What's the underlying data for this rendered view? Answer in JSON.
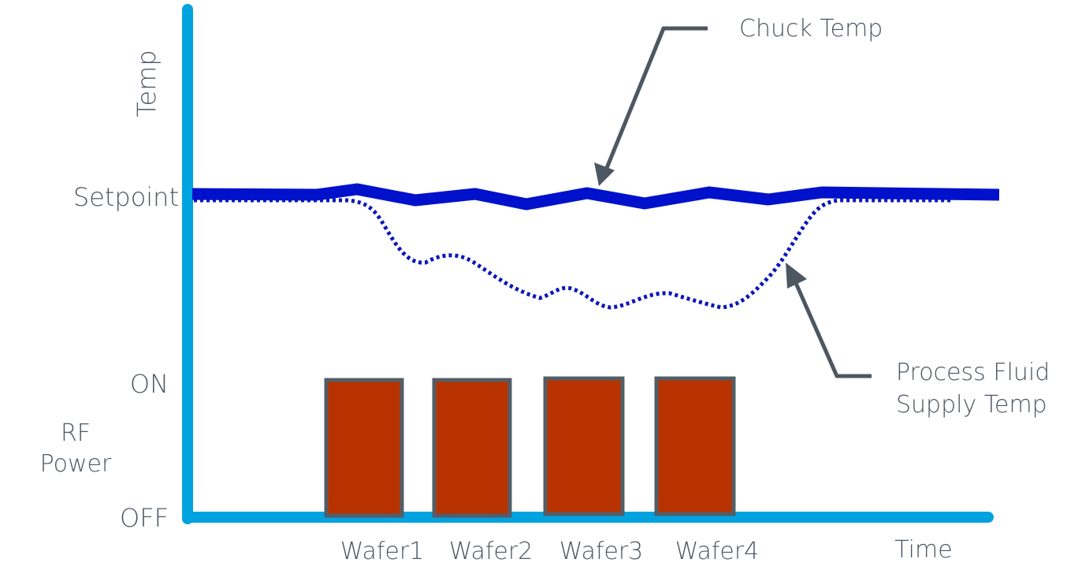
{
  "axis": {
    "y_title": "Temp",
    "x_title": "Time",
    "setpoint_label": "Setpoint",
    "on_label": "ON",
    "off_label": "OFF",
    "rf_label_line1": "RF",
    "rf_label_line2": "Power"
  },
  "callouts": {
    "chuck_temp": "Chuck Temp",
    "process_fluid_line1": "Process Fluid",
    "process_fluid_line2": "Supply Temp"
  },
  "wafers": [
    {
      "label": "Wafer1",
      "rf_state": "ON"
    },
    {
      "label": "Wafer2",
      "rf_state": "ON"
    },
    {
      "label": "Wafer3",
      "rf_state": "ON"
    },
    {
      "label": "Wafer4",
      "rf_state": "ON"
    }
  ],
  "colors": {
    "axis": "#00a3e0",
    "chuck_temp_line": "#0011cc",
    "fluid_temp_line": "#0a16b8",
    "wafer_fill": "#b83200",
    "wafer_border": "#535d66",
    "text_and_arrows": "#4d5762"
  }
}
